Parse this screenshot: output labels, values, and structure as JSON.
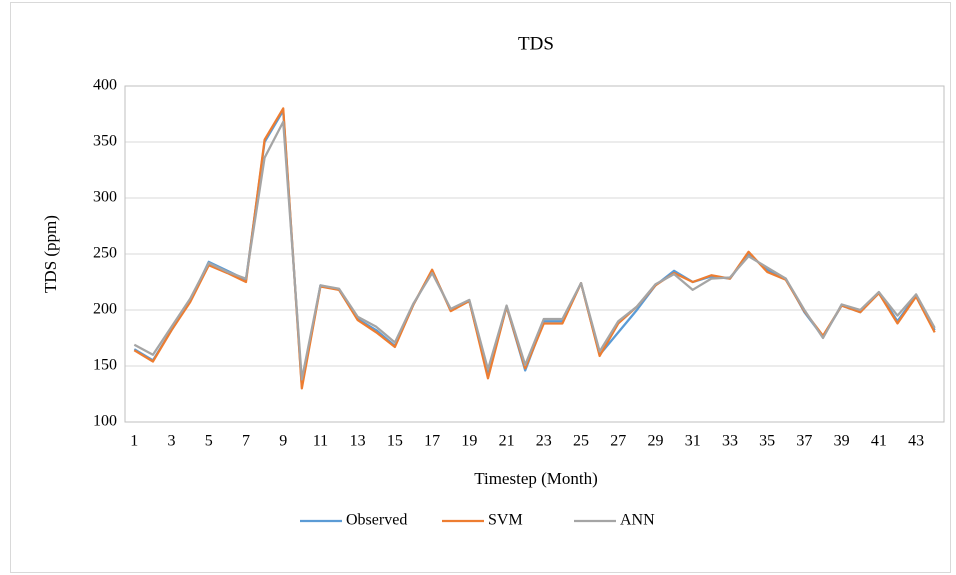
{
  "chart_data": {
    "type": "line",
    "title": "TDS",
    "x_label": "Timestep (Month)",
    "y_label": "TDS (ppm)",
    "categories": [
      "1",
      null,
      "3",
      null,
      "5",
      null,
      "7",
      null,
      "9",
      null,
      "11",
      null,
      "13",
      null,
      "15",
      null,
      "17",
      null,
      "19",
      null,
      "21",
      null,
      "23",
      null,
      "25",
      null,
      "27",
      null,
      "29",
      null,
      "31",
      null,
      "33",
      null,
      "35",
      null,
      "37",
      null,
      "39",
      null,
      "41",
      null,
      "43",
      null
    ],
    "series": [
      {
        "name": "Observed",
        "color": "#5b9bd5",
        "values": [
          165,
          155,
          182,
          208,
          243,
          235,
          227,
          350,
          378,
          132,
          222,
          218,
          192,
          182,
          168,
          205,
          235,
          200,
          208,
          142,
          203,
          146,
          190,
          190,
          224,
          160,
          180,
          200,
          222,
          235,
          225,
          230,
          228,
          250,
          236,
          228,
          198,
          176,
          204,
          198,
          216,
          190,
          213,
          182
        ]
      },
      {
        "name": "SVM",
        "color": "#ed7d31",
        "values": [
          164,
          154,
          182,
          207,
          240,
          233,
          225,
          352,
          380,
          130,
          221,
          218,
          191,
          180,
          167,
          205,
          236,
          199,
          208,
          139,
          203,
          148,
          188,
          188,
          224,
          159,
          188,
          203,
          222,
          233,
          225,
          231,
          228,
          252,
          234,
          227,
          199,
          177,
          204,
          198,
          215,
          188,
          212,
          180
        ]
      },
      {
        "name": "ANN",
        "color": "#a5a5a5",
        "values": [
          169,
          160,
          185,
          210,
          242,
          234,
          228,
          336,
          368,
          138,
          222,
          219,
          194,
          185,
          171,
          206,
          233,
          201,
          209,
          147,
          204,
          151,
          192,
          192,
          224,
          163,
          190,
          203,
          223,
          232,
          218,
          228,
          229,
          248,
          238,
          228,
          200,
          175,
          205,
          200,
          216,
          195,
          214,
          184
        ]
      }
    ],
    "ylim": [
      100,
      400
    ],
    "yticks": [
      100,
      150,
      200,
      250,
      300,
      350,
      400
    ],
    "grid": true,
    "legend": "bottom"
  }
}
